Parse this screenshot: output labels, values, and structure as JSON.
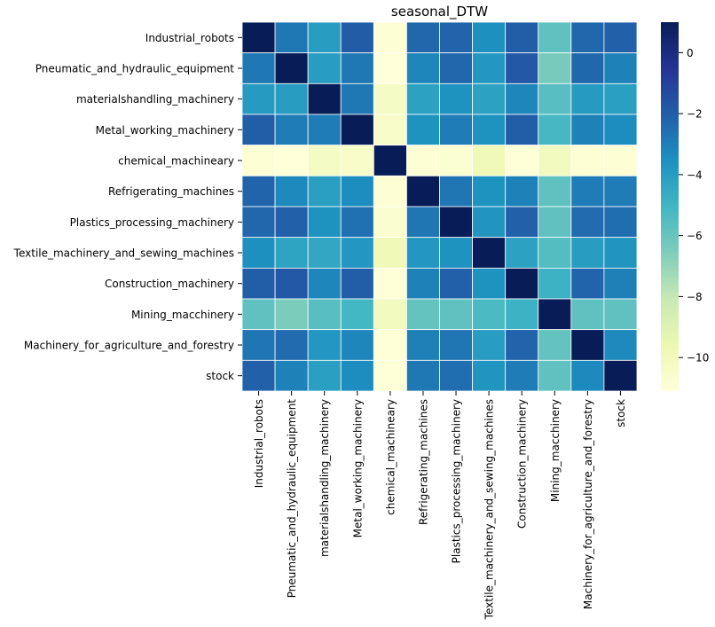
{
  "chart_data": {
    "type": "heatmap",
    "title": "seasonal_DTW",
    "row_labels": [
      "Industrial_robots",
      "Pneumatic_and_hydraulic_equipment",
      "materialshandling_machinery",
      "Metal_working_machinery",
      "chemical_machineary",
      "Refrigerating_machines",
      "Plastics_processing_machinery",
      "Textile_machinery_and_sewing_machines",
      "Construction_machinery",
      "Mining_macchinery",
      "Machinery_for_agriculture_and_forestry",
      "stock"
    ],
    "col_labels": [
      "Industrial_robots",
      "Pneumatic_and_hydraulic_equipment",
      "materialshandling_machinery",
      "Metal_working_machinery",
      "chemical_machineary",
      "Refrigerating_machines",
      "Plastics_processing_machinery",
      "Textile_machinery_and_sewing_machines",
      "Construction_machinery",
      "Mining_macchinery",
      "Machinery_for_agriculture_and_forestry",
      "stock"
    ],
    "values": [
      [
        1.0,
        -2.8,
        -4.0,
        -1.9,
        -10.9,
        -2.3,
        -2.2,
        -3.5,
        -2.0,
        -5.8,
        -2.3,
        -2.1
      ],
      [
        -2.8,
        1.0,
        -4.0,
        -2.8,
        -11.1,
        -3.2,
        -2.3,
        -3.8,
        -1.8,
        -6.4,
        -2.3,
        -3.1
      ],
      [
        -3.9,
        -4.0,
        1.0,
        -2.8,
        -10.3,
        -4.2,
        -3.6,
        -4.2,
        -3.2,
        -5.6,
        -3.9,
        -4.1
      ],
      [
        -2.0,
        -2.9,
        -2.9,
        1.0,
        -10.5,
        -3.6,
        -2.9,
        -3.6,
        -2.0,
        -5.2,
        -3.1,
        -3.4
      ],
      [
        -10.9,
        -11.1,
        -10.3,
        -10.5,
        1.0,
        -10.9,
        -10.8,
        -9.8,
        -11.0,
        -10.1,
        -10.9,
        -10.9
      ],
      [
        -2.2,
        -3.3,
        -4.1,
        -3.4,
        -10.9,
        1.0,
        -2.7,
        -3.6,
        -3.1,
        -5.8,
        -2.9,
        -2.9
      ],
      [
        -2.3,
        -2.1,
        -3.6,
        -2.6,
        -10.7,
        -2.7,
        1.0,
        -3.7,
        -2.1,
        -5.8,
        -2.4,
        -2.5
      ],
      [
        -3.5,
        -4.3,
        -4.4,
        -3.8,
        -9.8,
        -3.8,
        -3.6,
        1.0,
        -4.2,
        -5.5,
        -4.0,
        -3.7
      ],
      [
        -2.0,
        -1.8,
        -3.2,
        -2.0,
        -11.0,
        -3.1,
        -2.1,
        -3.6,
        1.0,
        -4.9,
        -2.2,
        -3.0
      ],
      [
        -5.8,
        -6.5,
        -5.6,
        -5.1,
        -10.1,
        -5.9,
        -5.8,
        -5.3,
        -4.9,
        1.0,
        -5.8,
        -5.8
      ],
      [
        -2.7,
        -2.4,
        -3.8,
        -3.2,
        -11.0,
        -3.0,
        -2.7,
        -4.0,
        -2.2,
        -5.9,
        1.0,
        -3.3
      ],
      [
        -2.1,
        -3.1,
        -4.1,
        -3.4,
        -11.0,
        -2.8,
        -2.5,
        -3.7,
        -2.9,
        -5.8,
        -3.3,
        1.0
      ]
    ],
    "vmin": -11.1,
    "vmax": 1.0,
    "colormap": "YlGnBu",
    "colorbar_ticks": [
      0,
      -2,
      -4,
      -6,
      -8,
      -10
    ],
    "grid": true
  }
}
